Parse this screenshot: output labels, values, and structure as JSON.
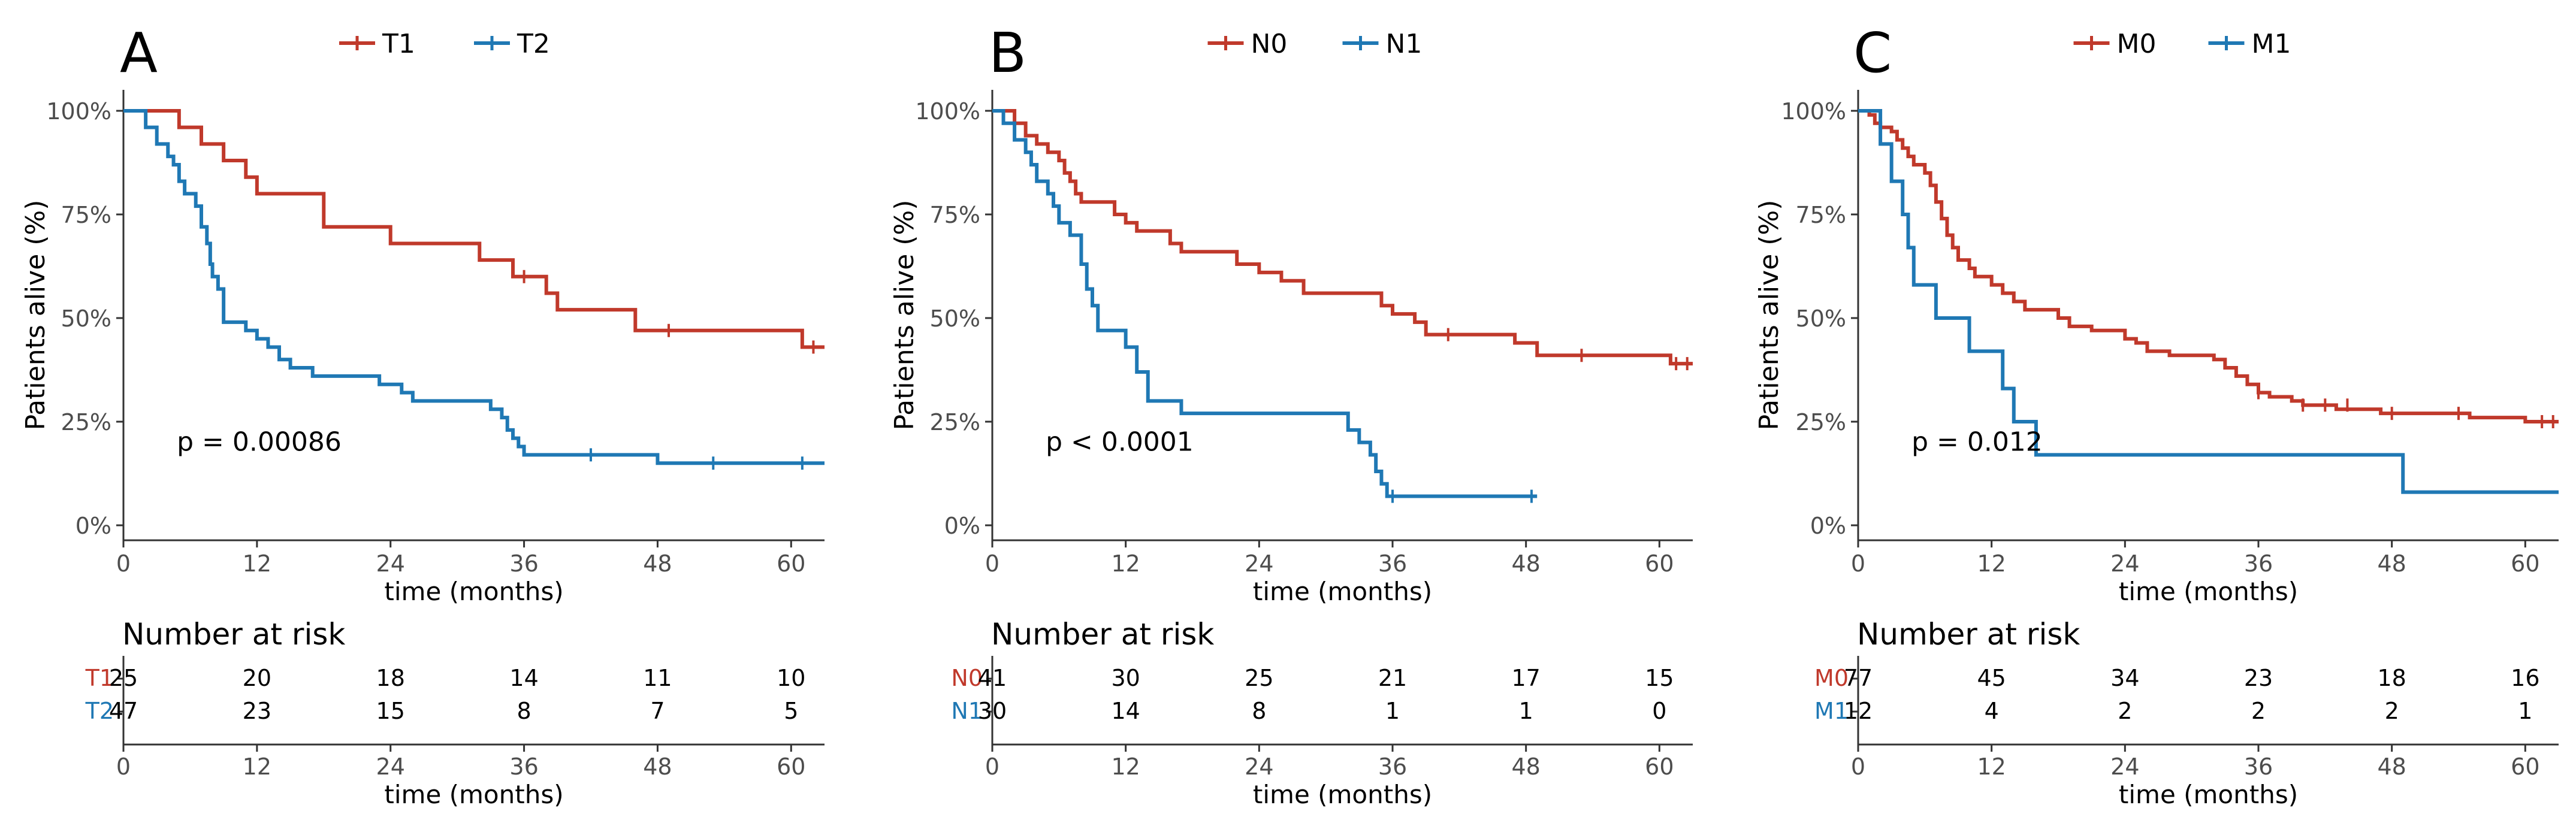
{
  "figure": {
    "xlabel": "time (months)",
    "risk_title": "Number at risk"
  },
  "colors": {
    "red": "#c0392b",
    "blue": "#1f78b4",
    "axis": "#333333",
    "tick_text": "#4d4d4d"
  },
  "chart_data": [
    {
      "type": "line",
      "panel_label": "A",
      "title": "",
      "xlabel": "time (months)",
      "ylabel": "Patients alive (%)",
      "xlim": [
        0,
        63
      ],
      "ylim": [
        0,
        100
      ],
      "xticks": [
        "0",
        "12",
        "24",
        "36",
        "48",
        "60"
      ],
      "yticks": [
        "0%",
        "25%",
        "50%",
        "75%",
        "100%"
      ],
      "pvalue": "p = 0.00086",
      "legend": [
        "T1",
        "T2"
      ],
      "series": [
        {
          "name": "T1",
          "color": "#c0392b",
          "steps": [
            [
              0,
              100
            ],
            [
              5,
              96
            ],
            [
              7,
              92
            ],
            [
              9,
              88
            ],
            [
              11,
              84
            ],
            [
              12,
              80
            ],
            [
              18,
              72
            ],
            [
              24,
              68
            ],
            [
              32,
              64
            ],
            [
              35,
              60
            ],
            [
              38,
              56
            ],
            [
              39,
              52
            ],
            [
              46,
              47
            ],
            [
              61,
              43
            ],
            [
              63,
              43
            ]
          ],
          "censors": [
            [
              36,
              60
            ],
            [
              49,
              47
            ],
            [
              62,
              43
            ]
          ]
        },
        {
          "name": "T2",
          "color": "#1f78b4",
          "steps": [
            [
              0,
              100
            ],
            [
              2,
              96
            ],
            [
              3,
              92
            ],
            [
              4,
              89
            ],
            [
              4.5,
              87
            ],
            [
              5,
              83
            ],
            [
              5.5,
              80
            ],
            [
              6.5,
              77
            ],
            [
              7,
              72
            ],
            [
              7.5,
              68
            ],
            [
              7.8,
              63
            ],
            [
              8,
              60
            ],
            [
              8.5,
              57
            ],
            [
              9,
              49
            ],
            [
              11,
              47
            ],
            [
              12,
              45
            ],
            [
              13,
              43
            ],
            [
              14,
              40
            ],
            [
              15,
              38
            ],
            [
              17,
              36
            ],
            [
              23,
              34
            ],
            [
              25,
              32
            ],
            [
              26,
              30
            ],
            [
              33,
              28
            ],
            [
              34,
              26
            ],
            [
              34.5,
              23
            ],
            [
              35,
              21
            ],
            [
              35.5,
              19
            ],
            [
              36,
              17
            ],
            [
              48,
              15
            ],
            [
              63,
              15
            ]
          ],
          "censors": [
            [
              42,
              17
            ],
            [
              53,
              15
            ],
            [
              61,
              15
            ]
          ]
        }
      ],
      "risk_table": {
        "times": [
          "0",
          "12",
          "24",
          "36",
          "48",
          "60"
        ],
        "rows": [
          {
            "label": "T1",
            "color": "#c0392b",
            "values": [
              "25",
              "20",
              "18",
              "14",
              "11",
              "10"
            ]
          },
          {
            "label": "T2",
            "color": "#1f78b4",
            "values": [
              "47",
              "23",
              "15",
              "8",
              "7",
              "5"
            ]
          }
        ]
      }
    },
    {
      "type": "line",
      "panel_label": "B",
      "title": "",
      "xlabel": "time (months)",
      "ylabel": "Patients alive (%)",
      "xlim": [
        0,
        63
      ],
      "ylim": [
        0,
        100
      ],
      "xticks": [
        "0",
        "12",
        "24",
        "36",
        "48",
        "60"
      ],
      "yticks": [
        "0%",
        "25%",
        "50%",
        "75%",
        "100%"
      ],
      "pvalue": "p < 0.0001",
      "legend": [
        "N0",
        "N1"
      ],
      "series": [
        {
          "name": "N0",
          "color": "#c0392b",
          "steps": [
            [
              0,
              100
            ],
            [
              2,
              97
            ],
            [
              3,
              94
            ],
            [
              4,
              92
            ],
            [
              5,
              90
            ],
            [
              6,
              88
            ],
            [
              6.5,
              85
            ],
            [
              7,
              83
            ],
            [
              7.5,
              80
            ],
            [
              8,
              78
            ],
            [
              11,
              75
            ],
            [
              12,
              73
            ],
            [
              13,
              71
            ],
            [
              16,
              68
            ],
            [
              17,
              66
            ],
            [
              22,
              63
            ],
            [
              24,
              61
            ],
            [
              26,
              59
            ],
            [
              28,
              56
            ],
            [
              35,
              53
            ],
            [
              36,
              51
            ],
            [
              38,
              49
            ],
            [
              39,
              46
            ],
            [
              47,
              44
            ],
            [
              49,
              41
            ],
            [
              61,
              39
            ],
            [
              63,
              39
            ]
          ],
          "censors": [
            [
              41,
              46
            ],
            [
              53,
              41
            ],
            [
              61.5,
              39
            ],
            [
              62.5,
              39
            ]
          ]
        },
        {
          "name": "N1",
          "color": "#1f78b4",
          "steps": [
            [
              0,
              100
            ],
            [
              1,
              97
            ],
            [
              2,
              93
            ],
            [
              3,
              90
            ],
            [
              3.5,
              87
            ],
            [
              4,
              83
            ],
            [
              5,
              80
            ],
            [
              5.5,
              77
            ],
            [
              6,
              73
            ],
            [
              7,
              70
            ],
            [
              8,
              63
            ],
            [
              8.5,
              57
            ],
            [
              9,
              53
            ],
            [
              9.5,
              47
            ],
            [
              12,
              43
            ],
            [
              13,
              37
            ],
            [
              14,
              30
            ],
            [
              17,
              27
            ],
            [
              32,
              23
            ],
            [
              33,
              20
            ],
            [
              34,
              17
            ],
            [
              34.5,
              13
            ],
            [
              35,
              10
            ],
            [
              35.5,
              7
            ],
            [
              49,
              7
            ]
          ],
          "censors": [
            [
              36,
              7
            ],
            [
              48.5,
              7
            ]
          ]
        }
      ],
      "risk_table": {
        "times": [
          "0",
          "12",
          "24",
          "36",
          "48",
          "60"
        ],
        "rows": [
          {
            "label": "N0",
            "color": "#c0392b",
            "values": [
              "41",
              "30",
              "25",
              "21",
              "17",
              "15"
            ]
          },
          {
            "label": "N1",
            "color": "#1f78b4",
            "values": [
              "30",
              "14",
              "8",
              "1",
              "1",
              "0"
            ]
          }
        ]
      }
    },
    {
      "type": "line",
      "panel_label": "C",
      "title": "",
      "xlabel": "time (months)",
      "ylabel": "Patients alive (%)",
      "xlim": [
        0,
        63
      ],
      "ylim": [
        0,
        100
      ],
      "xticks": [
        "0",
        "12",
        "24",
        "36",
        "48",
        "60"
      ],
      "yticks": [
        "0%",
        "25%",
        "50%",
        "75%",
        "100%"
      ],
      "pvalue": "p = 0.012",
      "legend": [
        "M0",
        "M1"
      ],
      "series": [
        {
          "name": "M0",
          "color": "#c0392b",
          "steps": [
            [
              0,
              100
            ],
            [
              1,
              99
            ],
            [
              1.5,
              97
            ],
            [
              2,
              96
            ],
            [
              3,
              95
            ],
            [
              3.5,
              93
            ],
            [
              4,
              91
            ],
            [
              4.5,
              89
            ],
            [
              5,
              87
            ],
            [
              6,
              85
            ],
            [
              6.5,
              82
            ],
            [
              7,
              78
            ],
            [
              7.5,
              74
            ],
            [
              8,
              70
            ],
            [
              8.5,
              67
            ],
            [
              9,
              64
            ],
            [
              10,
              62
            ],
            [
              10.5,
              60
            ],
            [
              12,
              58
            ],
            [
              13,
              56
            ],
            [
              14,
              54
            ],
            [
              15,
              52
            ],
            [
              18,
              50
            ],
            [
              19,
              48
            ],
            [
              21,
              47
            ],
            [
              24,
              45
            ],
            [
              25,
              44
            ],
            [
              26,
              42
            ],
            [
              28,
              41
            ],
            [
              32,
              40
            ],
            [
              33,
              38
            ],
            [
              34,
              36
            ],
            [
              35,
              34
            ],
            [
              36,
              32
            ],
            [
              37,
              31
            ],
            [
              39,
              30
            ],
            [
              40,
              29
            ],
            [
              43,
              28
            ],
            [
              47,
              27
            ],
            [
              55,
              26
            ],
            [
              60,
              25
            ],
            [
              63,
              25
            ]
          ],
          "censors": [
            [
              36,
              32
            ],
            [
              40,
              29
            ],
            [
              42,
              29
            ],
            [
              44,
              29
            ],
            [
              48,
              27
            ],
            [
              54,
              27
            ],
            [
              61.5,
              25
            ],
            [
              62.5,
              25
            ]
          ]
        },
        {
          "name": "M1",
          "color": "#1f78b4",
          "steps": [
            [
              0,
              100
            ],
            [
              2,
              92
            ],
            [
              3,
              83
            ],
            [
              4,
              75
            ],
            [
              4.5,
              67
            ],
            [
              5,
              58
            ],
            [
              7,
              50
            ],
            [
              10,
              42
            ],
            [
              13,
              33
            ],
            [
              14,
              25
            ],
            [
              16,
              17
            ],
            [
              49,
              8
            ],
            [
              63,
              8
            ]
          ],
          "censors": []
        }
      ],
      "risk_table": {
        "times": [
          "0",
          "12",
          "24",
          "36",
          "48",
          "60"
        ],
        "rows": [
          {
            "label": "M0",
            "color": "#c0392b",
            "values": [
              "77",
              "45",
              "34",
              "23",
              "18",
              "16"
            ]
          },
          {
            "label": "M1",
            "color": "#1f78b4",
            "values": [
              "12",
              "4",
              "2",
              "2",
              "2",
              "1"
            ]
          }
        ]
      }
    }
  ]
}
